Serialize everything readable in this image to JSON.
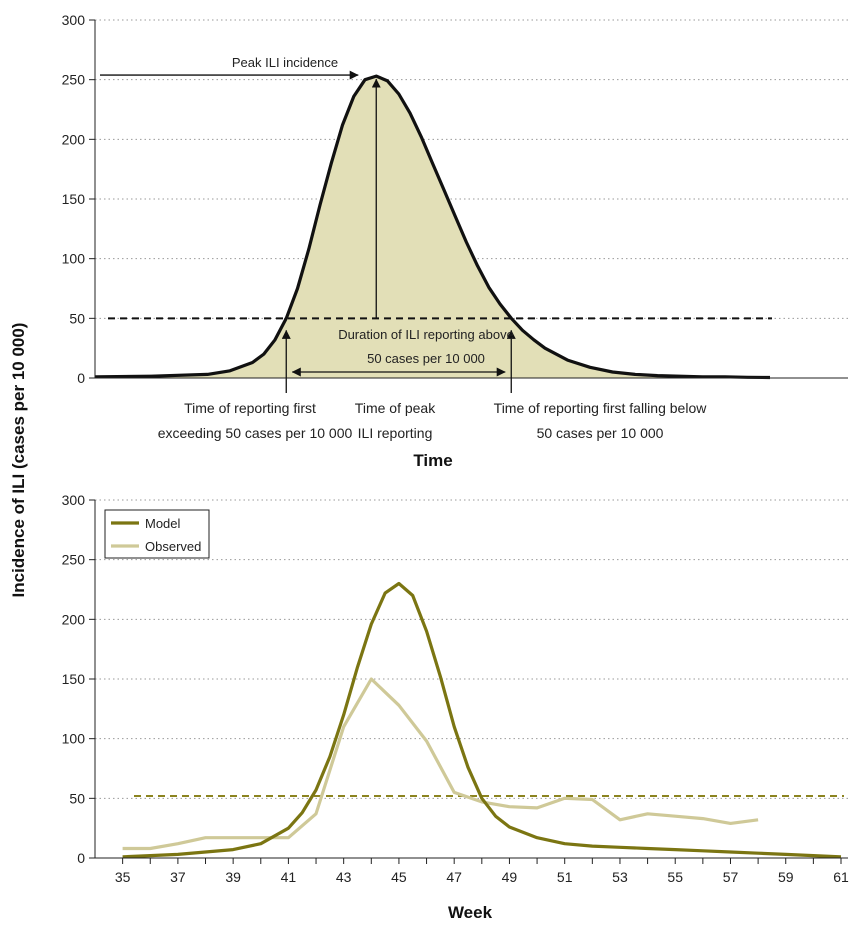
{
  "figure": {
    "y_axis_title": "Incidence of ILI (cases per 10 000)"
  },
  "chart_data": [
    {
      "type": "area",
      "xlabel": "Time",
      "ylim": [
        0,
        300
      ],
      "yticks": [
        0,
        50,
        100,
        150,
        200,
        250,
        300
      ],
      "grid": true,
      "threshold": 50,
      "fill_color": "#e2dfb7",
      "line_color": "#111111",
      "series": [
        {
          "x": [
            0,
            5,
            10,
            12,
            14,
            15,
            16,
            17,
            18,
            19,
            20,
            21,
            22,
            23,
            24,
            25,
            26,
            27,
            28,
            29,
            30,
            31,
            32,
            33,
            34,
            35,
            36,
            37,
            38,
            39,
            40,
            42,
            44,
            46,
            48,
            50,
            52,
            54,
            56,
            58,
            60
          ],
          "values": [
            1,
            1.5,
            3,
            6,
            13,
            20,
            32,
            50,
            75,
            108,
            145,
            180,
            212,
            236,
            250,
            253,
            249,
            238,
            222,
            202,
            180,
            158,
            136,
            114,
            94,
            76,
            62,
            50,
            40,
            32,
            25,
            15,
            9,
            5,
            3,
            2,
            1.5,
            1,
            1,
            0.6,
            0.4
          ]
        }
      ],
      "annotations": {
        "peak_label": "Peak ILI incidence",
        "duration_label_1": "Duration of ILI reporting above",
        "duration_label_2": "50 cases per 10 000",
        "first_exceed_1": "Time of reporting first",
        "first_exceed_2": "exceeding 50 cases per 10 000",
        "peak_time_1": "Time of peak",
        "peak_time_2": "ILI reporting",
        "fall_below_1": "Time of reporting first falling below",
        "fall_below_2": "50 cases per 10 000"
      }
    },
    {
      "type": "line",
      "xlabel": "Week",
      "xlim": [
        34,
        61
      ],
      "ylim": [
        0,
        300
      ],
      "yticks": [
        0,
        50,
        100,
        150,
        200,
        250,
        300
      ],
      "xticks": [
        35,
        37,
        39,
        41,
        43,
        45,
        47,
        49,
        51,
        53,
        55,
        57,
        59,
        61
      ],
      "grid": true,
      "threshold": 52,
      "threshold_color": "#8c8420",
      "legend_position": "top-left",
      "series": [
        {
          "name": "Model",
          "color": "#7b7512",
          "x": [
            35,
            36,
            37,
            38,
            39,
            40,
            41,
            41.5,
            42,
            42.5,
            43,
            43.5,
            44,
            44.5,
            45,
            45.5,
            46,
            46.5,
            47,
            47.5,
            48,
            48.5,
            49,
            50,
            51,
            52,
            53,
            54,
            55,
            56,
            57,
            58,
            59,
            60,
            61
          ],
          "values": [
            1,
            2,
            3,
            5,
            7,
            12,
            25,
            38,
            57,
            85,
            120,
            160,
            196,
            222,
            230,
            220,
            190,
            152,
            110,
            76,
            50,
            35,
            26,
            17,
            12,
            10,
            9,
            8,
            7,
            6,
            5,
            4,
            3,
            2,
            1
          ]
        },
        {
          "name": "Observed",
          "color": "#cfc998",
          "x": [
            35,
            36,
            37,
            38,
            39,
            40,
            41,
            42,
            43,
            44,
            45,
            46,
            47,
            48,
            49,
            50,
            51,
            52,
            53,
            54,
            55,
            56,
            57,
            58
          ],
          "values": [
            8,
            8,
            12,
            17,
            17,
            17,
            17,
            37,
            110,
            150,
            128,
            98,
            55,
            47,
            43,
            42,
            50,
            49,
            32,
            37,
            35,
            33,
            29,
            32
          ]
        }
      ]
    }
  ]
}
